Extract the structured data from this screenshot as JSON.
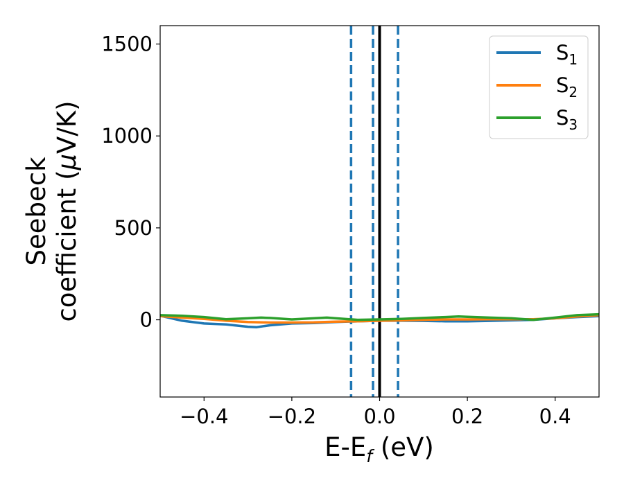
{
  "chart_data": {
    "type": "line",
    "xlabel": {
      "main": "E-E",
      "sub": "f",
      "suffix": " (eV)"
    },
    "ylabel": {
      "line1": "Seebeck",
      "line2_text": "coefficient  (",
      "line2_greek": "μ",
      "line2_suffix": "V/K)"
    },
    "xlim": [
      -0.5,
      0.5
    ],
    "ylim": [
      -420,
      1600
    ],
    "x_ticks": [
      -0.4,
      -0.2,
      0.0,
      0.2,
      0.4
    ],
    "x_tick_labels": [
      "−0.4",
      "−0.2",
      "0.0",
      "0.2",
      "0.4"
    ],
    "y_ticks": [
      0,
      500,
      1000,
      1500
    ],
    "y_tick_labels": [
      "0",
      "500",
      "1000",
      "1500"
    ],
    "grid": false,
    "legend_position": "top-right",
    "vertical_lines": [
      {
        "x": -0.065,
        "style": "dashed",
        "color": "#1f77b4"
      },
      {
        "x": -0.015,
        "style": "dashed",
        "color": "#1f77b4"
      },
      {
        "x": 0.042,
        "style": "dashed",
        "color": "#1f77b4"
      },
      {
        "x": 0.0,
        "style": "solid",
        "color": "#000000"
      }
    ],
    "series": [
      {
        "name": "S",
        "sub": "1",
        "color": "#1f77b4",
        "x": [
          -0.5,
          -0.45,
          -0.4,
          -0.35,
          -0.3,
          -0.28,
          -0.25,
          -0.2,
          -0.15,
          -0.1,
          -0.05,
          0.0,
          0.05,
          0.1,
          0.15,
          0.2,
          0.25,
          0.3,
          0.35,
          0.4,
          0.45,
          0.5
        ],
        "y": [
          22,
          -5,
          -20,
          -25,
          -38,
          -40,
          -30,
          -20,
          -18,
          -12,
          -8,
          -5,
          -5,
          -6,
          -8,
          -8,
          -6,
          -3,
          0,
          8,
          15,
          20
        ]
      },
      {
        "name": "S",
        "sub": "2",
        "color": "#ff7f0e",
        "x": [
          -0.5,
          -0.45,
          -0.4,
          -0.35,
          -0.3,
          -0.25,
          -0.2,
          -0.15,
          -0.1,
          -0.05,
          0.0,
          0.05,
          0.1,
          0.15,
          0.2,
          0.25,
          0.3,
          0.35,
          0.4,
          0.45,
          0.5
        ],
        "y": [
          20,
          12,
          5,
          -5,
          -12,
          -15,
          -15,
          -14,
          -10,
          -8,
          -5,
          -3,
          0,
          2,
          2,
          3,
          3,
          3,
          8,
          18,
          25
        ]
      },
      {
        "name": "S",
        "sub": "3",
        "color": "#2ca02c",
        "x": [
          -0.5,
          -0.45,
          -0.4,
          -0.35,
          -0.3,
          -0.27,
          -0.25,
          -0.2,
          -0.15,
          -0.12,
          -0.1,
          -0.05,
          0.0,
          0.05,
          0.1,
          0.15,
          0.18,
          0.2,
          0.25,
          0.3,
          0.35,
          0.4,
          0.45,
          0.5
        ],
        "y": [
          25,
          22,
          15,
          3,
          8,
          12,
          10,
          2,
          8,
          12,
          8,
          0,
          2,
          5,
          10,
          15,
          18,
          16,
          12,
          8,
          0,
          12,
          25,
          30
        ]
      }
    ]
  }
}
